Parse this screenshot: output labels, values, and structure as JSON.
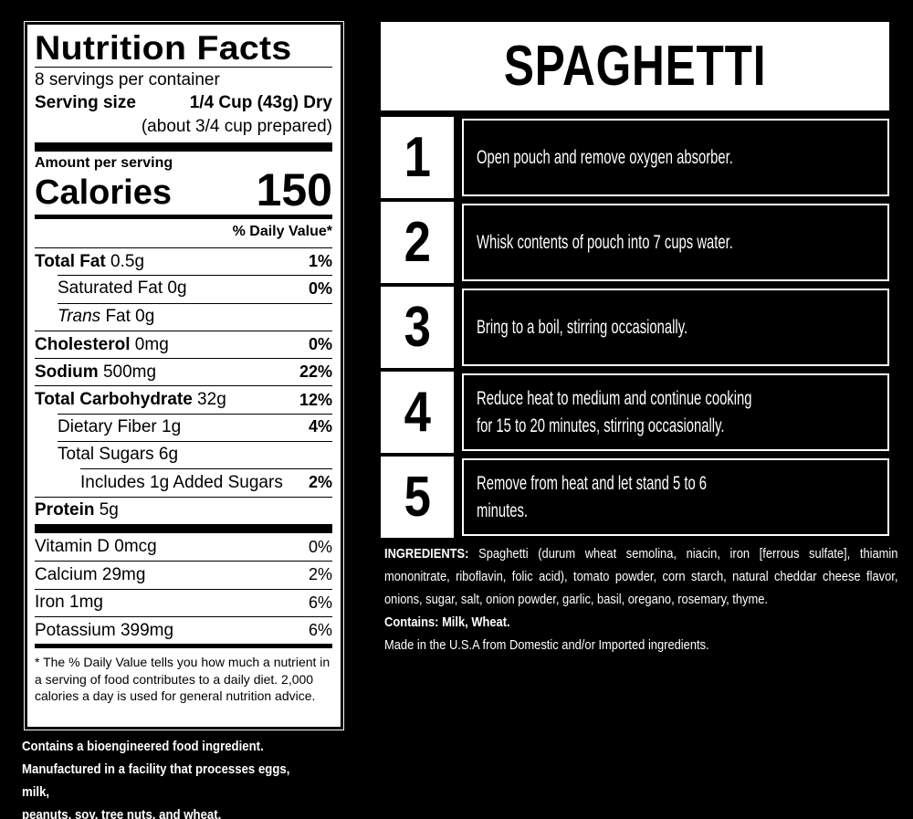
{
  "nutrition": {
    "title": "Nutrition Facts",
    "servings": "8 servings per container",
    "serving_size_label": "Serving size",
    "serving_size_value": "1/4 Cup (43g) Dry",
    "prepared": "(about 3/4 cup prepared)",
    "amount_per_serving": "Amount per serving",
    "calories_label": "Calories",
    "calories_value": "150",
    "daily_value_header": "% Daily Value*",
    "rows": [
      {
        "label_bold": "Total Fat",
        "label": " 0.5g",
        "pct": "1%"
      },
      {
        "label": "Saturated Fat 0g",
        "pct": "0%"
      },
      {
        "label_italic": "Trans",
        "label": " Fat 0g",
        "pct": ""
      },
      {
        "label_bold": "Cholesterol",
        "label": " 0mg",
        "pct": "0%"
      },
      {
        "label_bold": "Sodium",
        "label": " 500mg",
        "pct": "22%"
      },
      {
        "label_bold": "Total Carbohydrate",
        "label": " 32g",
        "pct": "12%"
      },
      {
        "label": "Dietary Fiber 1g",
        "pct": "4%"
      },
      {
        "label": "Total Sugars 6g",
        "pct": ""
      },
      {
        "label": "Includes 1g Added Sugars",
        "pct": "2%"
      },
      {
        "label_bold": "Protein",
        "label": " 5g",
        "pct": ""
      }
    ],
    "vitamins": [
      {
        "label": "Vitamin D 0mcg",
        "pct": "0%"
      },
      {
        "label": "Calcium 29mg",
        "pct": "2%"
      },
      {
        "label": "Iron 1mg",
        "pct": "6%"
      },
      {
        "label": "Potassium 399mg",
        "pct": "6%"
      }
    ],
    "footnote": "* The % Daily Value tells you how much a nutrient in a serving of food contributes to a daily diet. 2,000 calories a day is used for general nutrition advice."
  },
  "notes": {
    "line1": "Contains a bioengineered food ingredient.",
    "line2": "Manufactured in a facility that processes eggs, milk,",
    "line3": "peanuts, soy, tree nuts, and wheat."
  },
  "recipe": {
    "title": "SPAGHETTI",
    "steps": [
      {
        "num": "1",
        "lines": [
          "Open pouch and remove oxygen absorber."
        ]
      },
      {
        "num": "2",
        "lines": [
          "Whisk contents of pouch into 7 cups water."
        ]
      },
      {
        "num": "3",
        "lines": [
          "Bring to a boil, stirring occasionally."
        ]
      },
      {
        "num": "4",
        "lines": [
          "Reduce heat to medium and continue cooking",
          "for 15 to 20 minutes, stirring occasionally."
        ]
      },
      {
        "num": "5",
        "lines": [
          "Remove from heat and let stand 5 to 6",
          "minutes."
        ]
      }
    ],
    "ingredients_label": "INGREDIENTS:",
    "ingredients_text": " Spaghetti (durum wheat semolina, niacin, iron [ferrous sulfate], thiamin mononitrate, riboflavin, folic acid), tomato powder, corn starch, natural cheddar cheese flavor, onions, sugar, salt, onion powder, garlic, basil, oregano, rosemary, thyme.",
    "contains_label": "Contains: Milk, Wheat.",
    "made_in": "Made in the U.S.A from Domestic and/or Imported ingredients."
  }
}
